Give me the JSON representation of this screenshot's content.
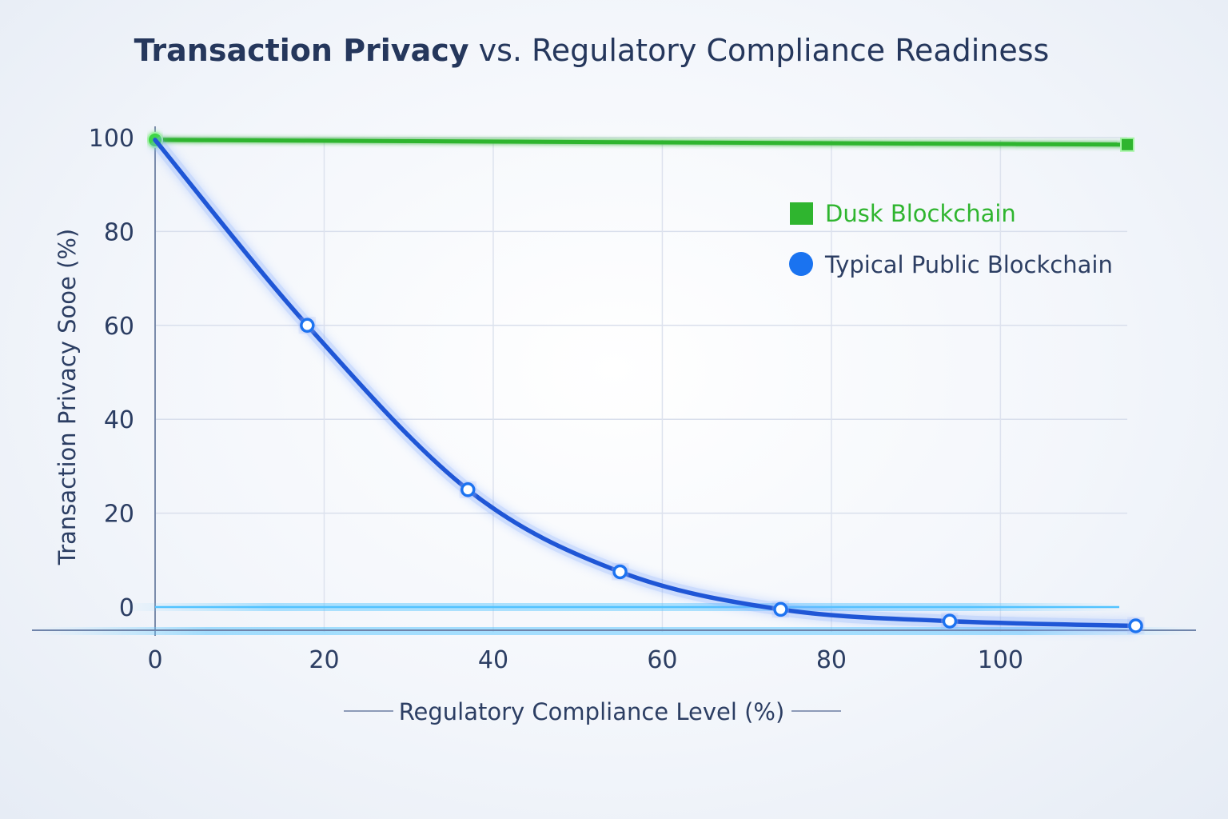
{
  "title": {
    "bold": "Transaction Privacy",
    "rest": " vs. Regulatory Compliance Readiness"
  },
  "colors": {
    "title": "#25375c",
    "dusk": "#2fb52f",
    "public": "#1f56d6",
    "public_marker": "#1a73f0",
    "grid": "#d9dfec",
    "axis_text": "#2c3e63"
  },
  "chart_data": {
    "type": "line",
    "xlabel": "Regulatory Compliance Level (%)",
    "ylabel": "Transaction Privacy Sooe (%)",
    "xlim": [
      0,
      115
    ],
    "ylim": [
      -5,
      100
    ],
    "xticks": [
      0,
      20,
      40,
      60,
      80,
      100
    ],
    "yticks": [
      0,
      20,
      40,
      60,
      80,
      100
    ],
    "grid": true,
    "legend_position": "top-right",
    "series": [
      {
        "name": "Dusk Blockchain",
        "color": "#2fb52f",
        "marker": "square",
        "x": [
          0,
          115
        ],
        "y": [
          99.5,
          98.5
        ]
      },
      {
        "name": "Typical Public Blockchain",
        "color": "#1f56d6",
        "marker": "circle",
        "x": [
          0,
          18,
          37,
          55,
          74,
          94,
          116
        ],
        "y": [
          99.5,
          60,
          25,
          7.5,
          -0.5,
          -3,
          -4
        ]
      }
    ]
  }
}
